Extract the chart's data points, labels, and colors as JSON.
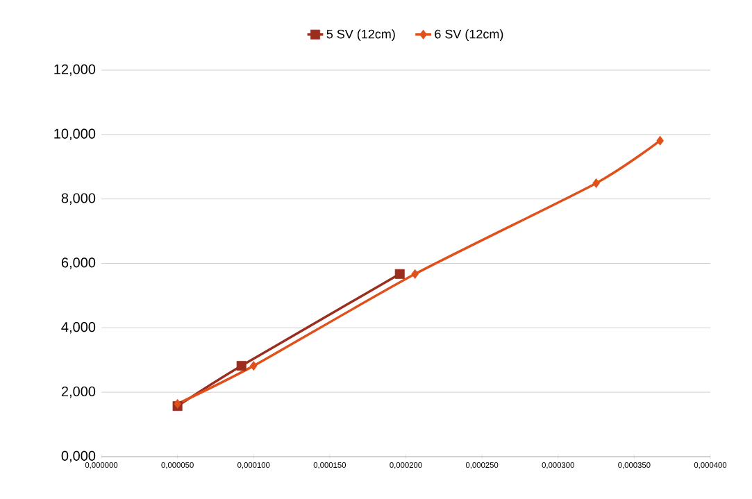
{
  "chart_data": {
    "type": "line",
    "legend": "top",
    "grid": "y",
    "line_style": "solid",
    "xlim": [
      0,
      0.0004
    ],
    "ylim": [
      0,
      12
    ],
    "xticks": [
      {
        "value": 0,
        "label": "0,000000"
      },
      {
        "value": 5e-05,
        "label": "0,000050"
      },
      {
        "value": 0.0001,
        "label": "0,000100"
      },
      {
        "value": 0.00015,
        "label": "0,000150"
      },
      {
        "value": 0.0002,
        "label": "0,000200"
      },
      {
        "value": 0.00025,
        "label": "0,000250"
      },
      {
        "value": 0.0003,
        "label": "0,000300"
      },
      {
        "value": 0.00035,
        "label": "0,000350"
      },
      {
        "value": 0.0004,
        "label": "0,000400"
      }
    ],
    "yticks": [
      {
        "value": 0,
        "label": "0,000"
      },
      {
        "value": 2,
        "label": "2,000"
      },
      {
        "value": 4,
        "label": "4,000"
      },
      {
        "value": 6,
        "label": "6,000"
      },
      {
        "value": 8,
        "label": "8,000"
      },
      {
        "value": 10,
        "label": "10,000"
      },
      {
        "value": 12,
        "label": "12,000"
      }
    ],
    "series": [
      {
        "name": "5 SV (12cm)",
        "color": "#9b2d1f",
        "marker": "square",
        "x": [
          5e-05,
          9.2e-05,
          0.000196
        ],
        "values": [
          1.57,
          2.82,
          5.67
        ]
      },
      {
        "name": "6 SV (12cm)",
        "color": "#e0501a",
        "marker": "diamond",
        "x": [
          5e-05,
          0.0001,
          0.000206,
          0.000325,
          0.000367
        ],
        "values": [
          1.64,
          2.82,
          5.67,
          8.49,
          9.81
        ]
      }
    ]
  }
}
